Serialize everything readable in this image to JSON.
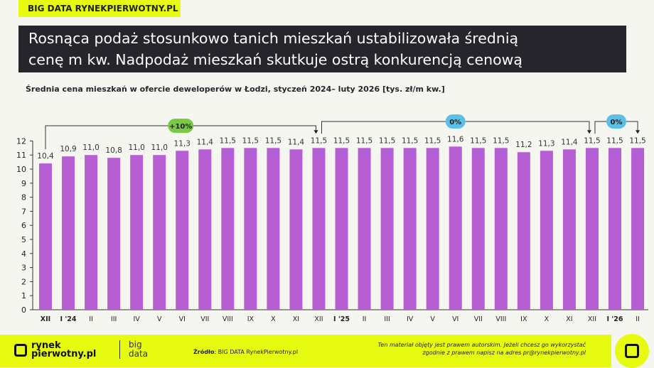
{
  "tag": "BIG DATA RYNEKPIERWOTNY.PL",
  "title_line1": "Rosnąca podaż stosunkowo tanich mieszkań ustabilizowała średnią",
  "title_line2": "cenę m kw. Nadpodaż mieszkań skutkuje ostrą konkurencją cenową",
  "footer": {
    "logo": "rynek pierwotny.pl",
    "bigdata": "big data",
    "source_label": "Źródło",
    "source": ": BIG DATA RynekPierwotny.pl",
    "copy1": "Ten materiał objęty jest prawem autorskim. Jeżeli chcesz go wykorzystać",
    "copy2": "zgodnie z prawem napisz na adres ",
    "email": "pr@rynekpierwotny.pl"
  },
  "chart_data": {
    "type": "bar",
    "title": "Średnia cena mieszkań w ofercie deweloperów w Łodzi, styczeń 2024– luty 2026 [tys. zł/m kw.]",
    "categories": [
      "XII",
      "I '24",
      "II",
      "III",
      "IV",
      "V",
      "VI",
      "VII",
      "VIII",
      "IX",
      "X",
      "XI",
      "XII",
      "I '25",
      "II",
      "III",
      "IV",
      "V",
      "VI",
      "VII",
      "VIII",
      "IX",
      "X",
      "XI",
      "XII",
      "I '26",
      "II"
    ],
    "bold_categories": [
      "XII",
      "I '24",
      "I '25",
      "I '26"
    ],
    "values": [
      10.4,
      10.9,
      11.0,
      10.8,
      11.0,
      11.0,
      11.3,
      11.4,
      11.5,
      11.5,
      11.5,
      11.4,
      11.5,
      11.5,
      11.5,
      11.5,
      11.5,
      11.5,
      11.6,
      11.5,
      11.5,
      11.2,
      11.3,
      11.4,
      11.5,
      11.5,
      11.5
    ],
    "labels": [
      "10,4",
      "10,9",
      "11,0",
      "10,8",
      "11,0",
      "11,0",
      "11,3",
      "11,4",
      "11,5",
      "11,5",
      "11,5",
      "11,4",
      "11,5",
      "11,5",
      "11,5",
      "11,5",
      "11,5",
      "11,5",
      "11,6",
      "11,5",
      "11,5",
      "11,2",
      "11,3",
      "11,4",
      "11,5",
      "11,5",
      "11,5"
    ],
    "ylim": [
      0,
      12
    ],
    "yticks": [
      0,
      1,
      2,
      3,
      4,
      5,
      6,
      7,
      8,
      9,
      10,
      11,
      12
    ],
    "annotations": [
      {
        "label": "+10%",
        "from": 0,
        "to": 12,
        "color": "#7ac943"
      },
      {
        "label": "0%",
        "from": 12,
        "to": 24,
        "color": "#5bc0e8"
      },
      {
        "label": "0%",
        "from": 24,
        "to": 26,
        "color": "#5bc0e8"
      }
    ],
    "bar_color": "#b65fd4"
  }
}
